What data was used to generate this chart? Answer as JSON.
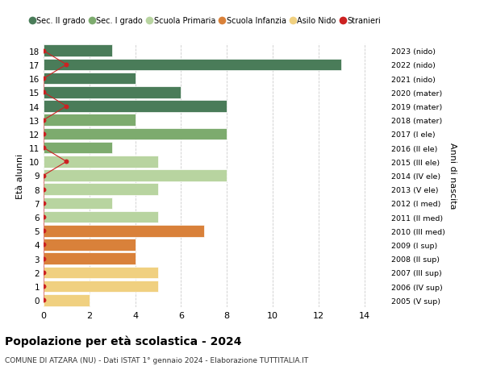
{
  "ages": [
    18,
    17,
    16,
    15,
    14,
    13,
    12,
    11,
    10,
    9,
    8,
    7,
    6,
    5,
    4,
    3,
    2,
    1,
    0
  ],
  "right_labels": [
    "2005 (V sup)",
    "2006 (IV sup)",
    "2007 (III sup)",
    "2008 (II sup)",
    "2009 (I sup)",
    "2010 (III med)",
    "2011 (II med)",
    "2012 (I med)",
    "2013 (V ele)",
    "2014 (IV ele)",
    "2015 (III ele)",
    "2016 (II ele)",
    "2017 (I ele)",
    "2018 (mater)",
    "2019 (mater)",
    "2020 (mater)",
    "2021 (nido)",
    "2022 (nido)",
    "2023 (nido)"
  ],
  "bar_values": [
    3,
    13,
    4,
    6,
    8,
    4,
    8,
    3,
    5,
    8,
    5,
    3,
    5,
    7,
    4,
    4,
    5,
    5,
    2
  ],
  "bar_colors": [
    "#4a7c59",
    "#4a7c59",
    "#4a7c59",
    "#4a7c59",
    "#4a7c59",
    "#7dab6e",
    "#7dab6e",
    "#7dab6e",
    "#b8d4a0",
    "#b8d4a0",
    "#b8d4a0",
    "#b8d4a0",
    "#b8d4a0",
    "#d9813a",
    "#d9813a",
    "#d9813a",
    "#f0d080",
    "#f0d080",
    "#f0d080"
  ],
  "stranieri_values": [
    0,
    1,
    0,
    0,
    1,
    0,
    0,
    0,
    1,
    0,
    0,
    0,
    0,
    0,
    0,
    0,
    0,
    0,
    0
  ],
  "stranieri_color": "#cc2222",
  "legend_labels": [
    "Sec. II grado",
    "Sec. I grado",
    "Scuola Primaria",
    "Scuola Infanzia",
    "Asilo Nido",
    "Stranieri"
  ],
  "legend_colors": [
    "#4a7c59",
    "#7dab6e",
    "#b8d4a0",
    "#d9813a",
    "#f0d080",
    "#cc2222"
  ],
  "title": "Popolazione per età scolastica - 2024",
  "subtitle": "COMUNE DI ATZARA (NU) - Dati ISTAT 1° gennaio 2024 - Elaborazione TUTTITALIA.IT",
  "ylabel": "Età alunni",
  "right_ylabel": "Anni di nascita",
  "xlim": [
    0,
    15
  ],
  "xticks": [
    0,
    2,
    4,
    6,
    8,
    10,
    12,
    14
  ],
  "bg_color": "#ffffff",
  "grid_color": "#cccccc"
}
